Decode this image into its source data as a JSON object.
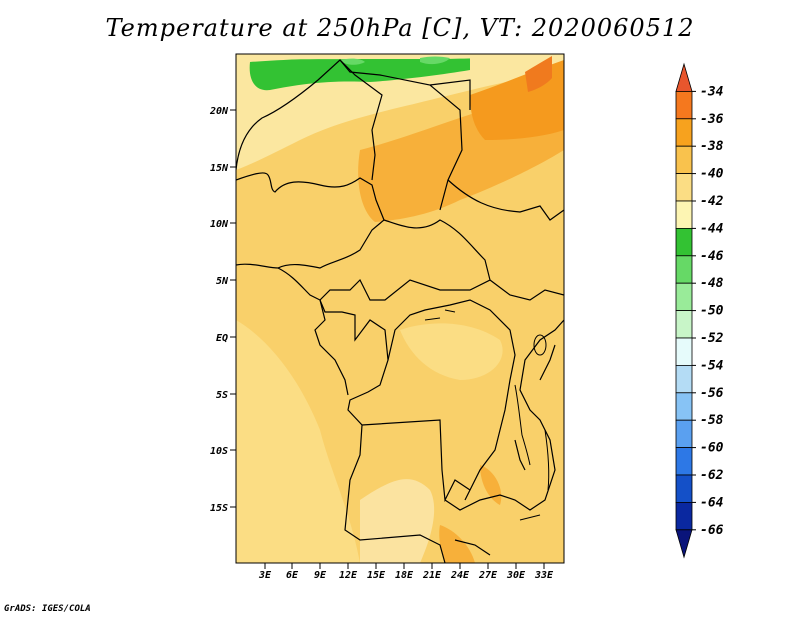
{
  "title": "Temperature at 250hPa [C], VT: 2020060512",
  "credit": "GrADS: IGES/COLA",
  "map": {
    "lat_labels": [
      "20N",
      "15N",
      "10N",
      "5N",
      "EQ",
      "5S",
      "10S",
      "15S"
    ],
    "lon_labels": [
      "3E",
      "6E",
      "9E",
      "12E",
      "15E",
      "18E",
      "21E",
      "24E",
      "27E",
      "30E",
      "33E"
    ]
  },
  "colorbar": {
    "labels": [
      "-34",
      "-36",
      "-38",
      "-40",
      "-42",
      "-44",
      "-46",
      "-48",
      "-50",
      "-52",
      "-54",
      "-56",
      "-58",
      "-60",
      "-62",
      "-64",
      "-66"
    ],
    "colors": [
      "#e8562d",
      "#f5781e",
      "#f7a21e",
      "#f9c24d",
      "#fbdd84",
      "#fdf5b3",
      "#33c233",
      "#66d966",
      "#99eb99",
      "#c8f5c8",
      "#e6fbfb",
      "#b4dcf5",
      "#87c3f5",
      "#5aa0f0",
      "#2d78e6",
      "#1450c8",
      "#0a28a0",
      "#0a147a"
    ]
  }
}
